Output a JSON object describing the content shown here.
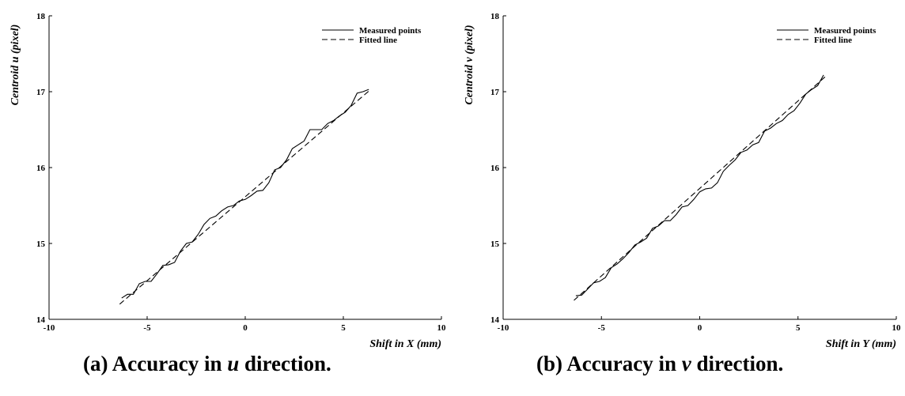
{
  "chart_data": [
    {
      "type": "line",
      "xlabel": "Shift in X (mm)",
      "ylabel": "Centroid u (pixel)",
      "xlim": [
        -10,
        10
      ],
      "ylim": [
        14,
        18
      ],
      "xticks": [
        -10,
        -5,
        0,
        5,
        10
      ],
      "yticks": [
        14,
        15,
        16,
        17,
        18
      ],
      "grid": false,
      "legend_position": "top-right",
      "series": [
        {
          "name": "Measured points",
          "style": "solid",
          "x": [
            -6.3,
            -6.0,
            -5.7,
            -5.4,
            -5.1,
            -4.8,
            -4.5,
            -4.2,
            -3.9,
            -3.6,
            -3.3,
            -3.0,
            -2.7,
            -2.4,
            -2.1,
            -1.8,
            -1.5,
            -1.2,
            -0.9,
            -0.6,
            -0.3,
            0.0,
            0.3,
            0.6,
            0.9,
            1.2,
            1.5,
            1.8,
            2.1,
            2.4,
            2.7,
            3.0,
            3.3,
            3.6,
            3.9,
            4.2,
            4.5,
            4.8,
            5.1,
            5.4,
            5.7,
            6.0,
            6.3
          ],
          "y": [
            14.28,
            14.33,
            14.33,
            14.47,
            14.5,
            14.5,
            14.6,
            14.71,
            14.72,
            14.75,
            14.9,
            15.0,
            15.02,
            15.12,
            15.25,
            15.33,
            15.36,
            15.43,
            15.48,
            15.5,
            15.56,
            15.58,
            15.63,
            15.69,
            15.7,
            15.8,
            15.97,
            16.0,
            16.1,
            16.25,
            16.3,
            16.35,
            16.5,
            16.5,
            16.5,
            16.58,
            16.62,
            16.68,
            16.73,
            16.82,
            16.98,
            17.0,
            17.03
          ]
        },
        {
          "name": "Fitted line",
          "style": "dashed",
          "x": [
            -6.4,
            6.4
          ],
          "y": [
            14.2,
            17.03
          ]
        }
      ]
    },
    {
      "type": "line",
      "xlabel": "Shift in Y (mm)",
      "ylabel": "Centroid v (pixel)",
      "xlim": [
        -10,
        10
      ],
      "ylim": [
        14,
        18
      ],
      "xticks": [
        -10,
        -5,
        0,
        5,
        10
      ],
      "yticks": [
        14,
        15,
        16,
        17,
        18
      ],
      "grid": false,
      "legend_position": "top-right",
      "series": [
        {
          "name": "Measured points",
          "style": "solid",
          "x": [
            -6.3,
            -6.0,
            -5.7,
            -5.4,
            -5.1,
            -4.8,
            -4.5,
            -4.2,
            -3.9,
            -3.6,
            -3.3,
            -3.0,
            -2.7,
            -2.4,
            -2.1,
            -1.8,
            -1.5,
            -1.2,
            -0.9,
            -0.6,
            -0.3,
            0.0,
            0.3,
            0.6,
            0.9,
            1.2,
            1.5,
            1.8,
            2.1,
            2.4,
            2.7,
            3.0,
            3.3,
            3.6,
            3.9,
            4.2,
            4.5,
            4.8,
            5.1,
            5.4,
            5.7,
            6.0,
            6.3
          ],
          "y": [
            14.31,
            14.32,
            14.4,
            14.48,
            14.5,
            14.55,
            14.68,
            14.73,
            14.8,
            14.88,
            14.98,
            15.02,
            15.07,
            15.2,
            15.23,
            15.3,
            15.3,
            15.38,
            15.48,
            15.5,
            15.58,
            15.68,
            15.72,
            15.73,
            15.8,
            15.95,
            16.03,
            16.1,
            16.2,
            16.23,
            16.3,
            16.33,
            16.48,
            16.52,
            16.58,
            16.62,
            16.7,
            16.75,
            16.85,
            16.97,
            17.03,
            17.08,
            17.22
          ]
        },
        {
          "name": "Fitted line",
          "style": "dashed",
          "x": [
            -6.4,
            6.4
          ],
          "y": [
            14.25,
            17.2
          ]
        }
      ]
    }
  ],
  "captions": [
    {
      "prefix": "(a) Accuracy in ",
      "var": "u",
      "suffix": " direction."
    },
    {
      "prefix": "(b) Accuracy in ",
      "var": "v",
      "suffix": " direction."
    }
  ]
}
